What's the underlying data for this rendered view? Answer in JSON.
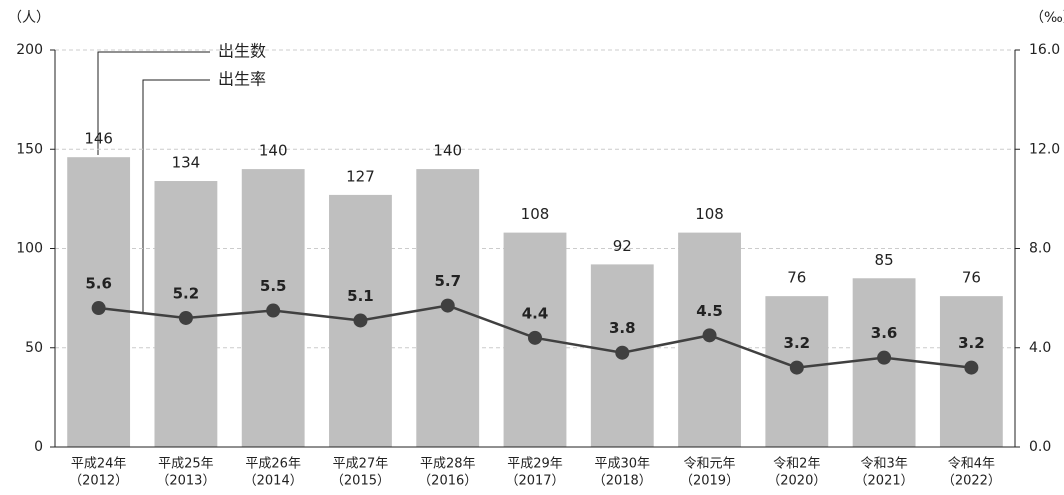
{
  "chart_data": {
    "type": "bar_line",
    "ylabel": "（人）",
    "y2label": "（‰）",
    "categories": [
      [
        "平成24年",
        "（2012）"
      ],
      [
        "平成25年",
        "（2013）"
      ],
      [
        "平成26年",
        "（2014）"
      ],
      [
        "平成27年",
        "（2015）"
      ],
      [
        "平成28年",
        "（2016）"
      ],
      [
        "平成29年",
        "（2017）"
      ],
      [
        "平成30年",
        "（2018）"
      ],
      [
        "令和元年",
        "（2019）"
      ],
      [
        "令和2年",
        "（2020）"
      ],
      [
        "令和3年",
        "（2021）"
      ],
      [
        "令和4年",
        "（2022）"
      ]
    ],
    "series": [
      {
        "name": "出生数",
        "type": "bar",
        "color": "#bfbfbf",
        "values": [
          146,
          134,
          140,
          127,
          140,
          108,
          92,
          108,
          76,
          85,
          76
        ]
      },
      {
        "name": "出生率",
        "type": "line",
        "axis": "y2",
        "color": "#404040",
        "values": [
          5.6,
          5.2,
          5.5,
          5.1,
          5.7,
          4.4,
          3.8,
          4.5,
          3.2,
          3.6,
          3.2
        ]
      }
    ],
    "ylim": [
      0,
      200
    ],
    "yticks": [
      0,
      50,
      100,
      150,
      200
    ],
    "y2lim": [
      0,
      16
    ],
    "y2ticks": [
      {
        "value": 0,
        "label": "0.0"
      },
      {
        "value": 4,
        "label": "4.0"
      },
      {
        "value": 8,
        "label": "8.0"
      },
      {
        "value": 12,
        "label": "12.0"
      },
      {
        "value": 16,
        "label": "16.0"
      }
    ],
    "grid": true
  }
}
